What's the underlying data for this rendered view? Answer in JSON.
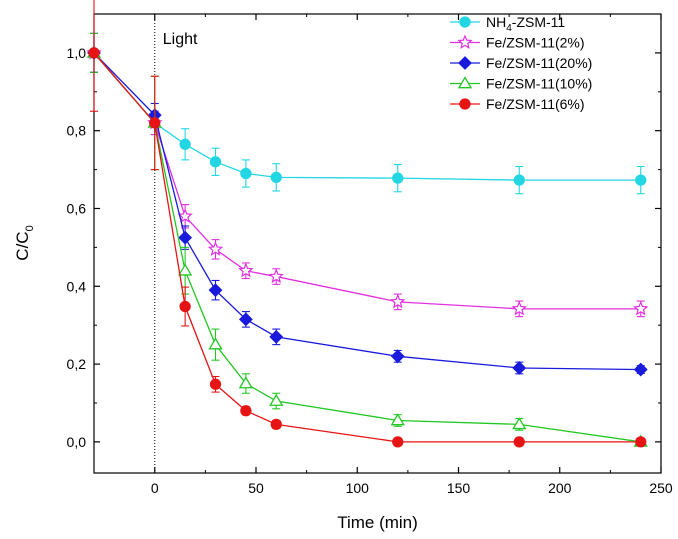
{
  "chart_data": {
    "type": "line",
    "title": "",
    "xlabel": "Time (min)",
    "ylabel_main": "C/C",
    "ylabel_sub": "0",
    "xlim": [
      -30,
      250
    ],
    "ylim": [
      -0.08,
      1.1
    ],
    "xticks": [
      0,
      50,
      100,
      150,
      200,
      250
    ],
    "xtick_labels": [
      "0",
      "50",
      "100",
      "150",
      "200",
      "250"
    ],
    "yticks": [
      0.0,
      0.2,
      0.4,
      0.6,
      0.8,
      1.0
    ],
    "ytick_labels": [
      "0,0",
      "0,2",
      "0,4",
      "0,6",
      "0,8",
      "1,0"
    ],
    "grid": false,
    "legend_position": "top-right",
    "annotation": {
      "text": "Light",
      "x": 0
    },
    "series": [
      {
        "name_main": "NH",
        "name_sub1": "4",
        "name_rest": "-ZSM-11",
        "color": "#22d6e4",
        "marker": "circle",
        "filled": true,
        "x": [
          -30,
          0,
          15,
          30,
          45,
          60,
          120,
          180,
          240
        ],
        "y": [
          1.0,
          0.82,
          0.765,
          0.72,
          0.69,
          0.68,
          0.678,
          0.673,
          0.673
        ],
        "err": [
          0.05,
          0.03,
          0.04,
          0.035,
          0.035,
          0.035,
          0.035,
          0.035,
          0.035
        ]
      },
      {
        "name_main": "Fe/ZSM-11(2%)",
        "color": "#e030e0",
        "marker": "star",
        "filled": false,
        "x": [
          -30,
          0,
          15,
          30,
          45,
          60,
          120,
          180,
          240
        ],
        "y": [
          1.0,
          0.82,
          0.58,
          0.495,
          0.44,
          0.425,
          0.36,
          0.342,
          0.342
        ],
        "err": [
          0.05,
          0.03,
          0.03,
          0.025,
          0.02,
          0.02,
          0.02,
          0.02,
          0.02
        ]
      },
      {
        "name_main": "Fe/ZSM-11(20%)",
        "color": "#1a1adc",
        "marker": "diamond",
        "filled": true,
        "x": [
          -30,
          0,
          15,
          30,
          45,
          60,
          120,
          180,
          240
        ],
        "y": [
          1.0,
          0.84,
          0.525,
          0.39,
          0.315,
          0.27,
          0.22,
          0.19,
          0.186
        ],
        "err": [
          0.05,
          0.03,
          0.03,
          0.025,
          0.02,
          0.02,
          0.015,
          0.015,
          0.01
        ]
      },
      {
        "name_main": "Fe/ZSM-11(10%)",
        "color": "#22c822",
        "marker": "triangle",
        "filled": false,
        "x": [
          -30,
          0,
          15,
          30,
          45,
          60,
          120,
          180,
          240
        ],
        "y": [
          1.0,
          0.82,
          0.44,
          0.25,
          0.15,
          0.105,
          0.055,
          0.045,
          0.0
        ],
        "err": [
          0.05,
          0.12,
          0.06,
          0.04,
          0.025,
          0.02,
          0.015,
          0.015,
          0.005
        ]
      },
      {
        "name_main": "Fe/ZSM-11(6%)",
        "color": "#e61414",
        "marker": "circle",
        "filled": true,
        "x": [
          -30,
          0,
          15,
          30,
          45,
          60,
          120,
          180,
          240
        ],
        "y": [
          1.0,
          0.82,
          0.348,
          0.148,
          0.08,
          0.045,
          0.0,
          0.0,
          0.0
        ],
        "err": [
          0.15,
          0.12,
          0.05,
          0.02,
          0.01,
          0.01,
          0.005,
          0.005,
          0.005
        ]
      }
    ]
  }
}
